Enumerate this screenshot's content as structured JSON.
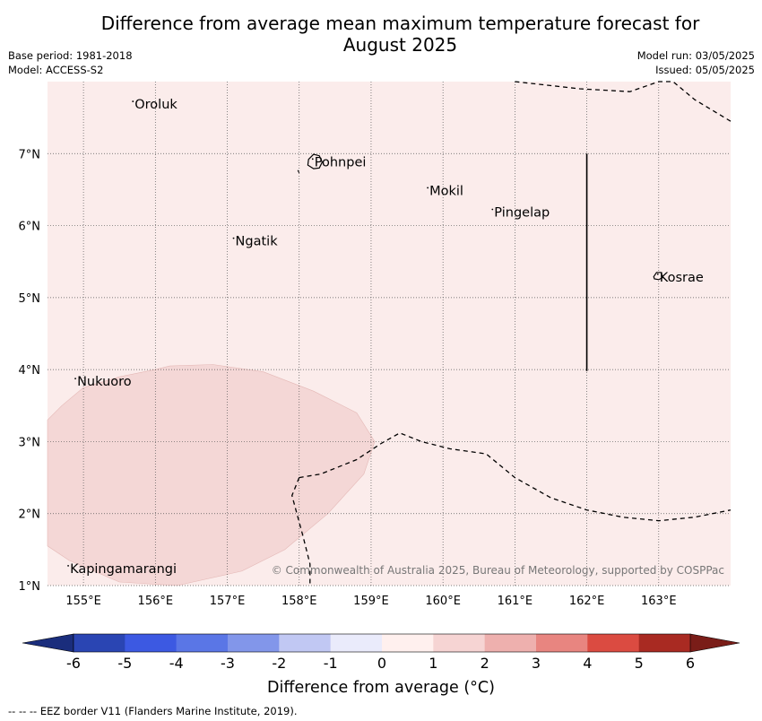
{
  "title_line1": "Difference from average mean maximum temperature forecast for",
  "title_line2": "August 2025",
  "base_period": "Base period: 1981-2018",
  "model": "Model: ACCESS-S2",
  "model_run": "Model run: 03/05/2025",
  "issued": "Issued: 05/05/2025",
  "copyright": "© Commonwealth of Australia 2025, Bureau of Meteorology, supported by COSPPac",
  "lon_labels": [
    "155°E",
    "156°E",
    "157°E",
    "158°E",
    "159°E",
    "160°E",
    "161°E",
    "162°E",
    "163°E"
  ],
  "lat_labels": [
    "1°N",
    "2°N",
    "3°N",
    "4°N",
    "5°N",
    "6°N",
    "7°N"
  ],
  "places": [
    {
      "name": "Oroluk",
      "lon": 155.7,
      "lat": 7.7
    },
    {
      "name": "Pohnpei",
      "lon": 158.2,
      "lat": 6.9
    },
    {
      "name": "Mokil",
      "lon": 159.8,
      "lat": 6.5
    },
    {
      "name": "Pingelap",
      "lon": 160.7,
      "lat": 6.2
    },
    {
      "name": "Ngatik",
      "lon": 157.1,
      "lat": 5.8
    },
    {
      "name": "Kosrae",
      "lon": 163.0,
      "lat": 5.3
    },
    {
      "name": "Nukuoro",
      "lon": 154.9,
      "lat": 3.85
    },
    {
      "name": "Kapingamarangi",
      "lon": 154.8,
      "lat": 1.25
    }
  ],
  "field": {
    "background_category": "0 to 1",
    "background_color": "#fbeceb",
    "patch_category": "1 to 2",
    "patch_color": "#f4d7d6"
  },
  "colorbar": {
    "ticks": [
      "-6",
      "-5",
      "-4",
      "-3",
      "-2",
      "-1",
      "0",
      "1",
      "2",
      "3",
      "4",
      "5",
      "6"
    ],
    "colors": [
      "#2a45b3",
      "#3c59e2",
      "#5a76e6",
      "#8296ea",
      "#c1c8f3",
      "#eaebfb",
      "#fff0ee",
      "#f6d4d3",
      "#eeb0ae",
      "#e88580",
      "#db4b41",
      "#a92a22"
    ],
    "low_extend_color": "#1a2d7c",
    "high_extend_color": "#7a1d18",
    "label": "Difference from average (°C)"
  },
  "legend_note": "--  --  -- EEZ border V11 (Flanders Marine Institute, 2019)."
}
